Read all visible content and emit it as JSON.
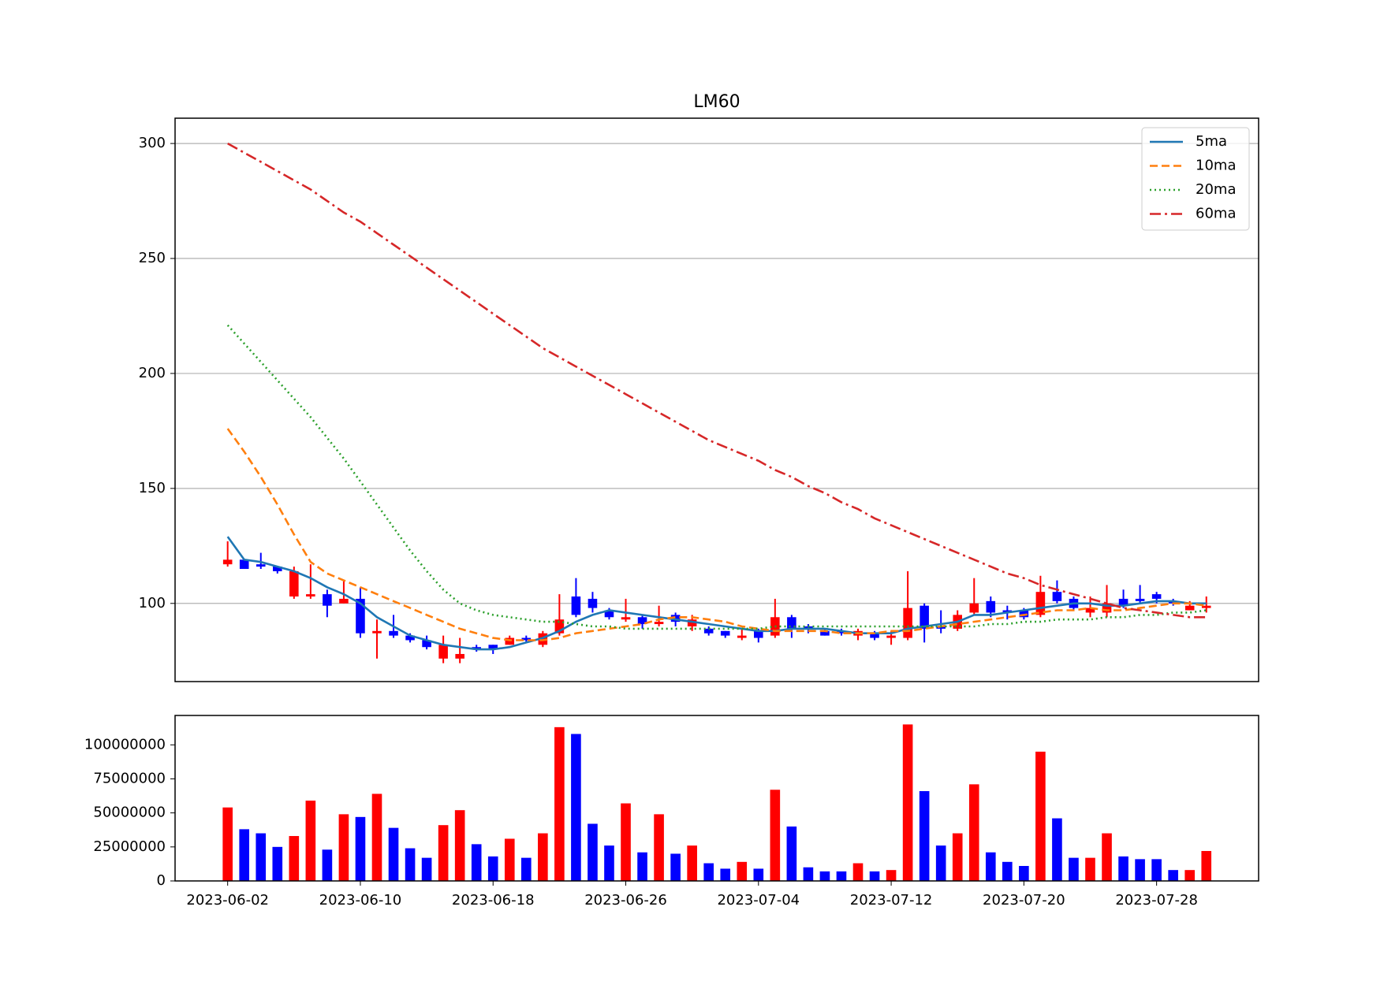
{
  "chart_data": [
    {
      "type": "candlestick",
      "title": "LM60",
      "x": [
        "2023-06-02",
        "2023-06-03",
        "2023-06-04",
        "2023-06-05",
        "2023-06-06",
        "2023-06-07",
        "2023-06-08",
        "2023-06-09",
        "2023-06-10",
        "2023-06-11",
        "2023-06-12",
        "2023-06-13",
        "2023-06-14",
        "2023-06-15",
        "2023-06-16",
        "2023-06-17",
        "2023-06-18",
        "2023-06-19",
        "2023-06-20",
        "2023-06-21",
        "2023-06-22",
        "2023-06-23",
        "2023-06-24",
        "2023-06-25",
        "2023-06-26",
        "2023-06-27",
        "2023-06-28",
        "2023-06-29",
        "2023-06-30",
        "2023-07-01",
        "2023-07-02",
        "2023-07-03",
        "2023-07-04",
        "2023-07-05",
        "2023-07-06",
        "2023-07-07",
        "2023-07-08",
        "2023-07-09",
        "2023-07-10",
        "2023-07-11",
        "2023-07-12",
        "2023-07-13",
        "2023-07-14",
        "2023-07-15",
        "2023-07-16",
        "2023-07-17",
        "2023-07-18",
        "2023-07-19",
        "2023-07-20",
        "2023-07-21",
        "2023-07-22",
        "2023-07-23",
        "2023-07-24",
        "2023-07-25",
        "2023-07-26",
        "2023-07-27",
        "2023-07-28",
        "2023-07-29",
        "2023-07-30",
        "2023-07-31"
      ],
      "open": [
        117,
        119,
        117,
        116,
        103,
        103,
        104,
        100,
        102,
        87,
        88,
        86,
        84,
        76,
        76,
        81,
        82,
        82,
        85,
        82,
        87,
        103,
        102,
        97,
        93,
        94,
        91,
        95,
        90,
        89,
        88,
        85,
        88,
        86,
        94,
        90,
        88,
        88,
        86,
        87,
        85,
        85,
        99,
        90,
        89,
        96,
        101,
        97,
        97,
        95,
        105,
        102,
        96,
        96,
        102,
        102,
        104,
        101,
        97,
        98
      ],
      "close": [
        119,
        115,
        116,
        114,
        114,
        104,
        99,
        102,
        87,
        88,
        86,
        84,
        81,
        82,
        78,
        80,
        80,
        85,
        84,
        87,
        93,
        95,
        98,
        94,
        94,
        91,
        92,
        92,
        93,
        87,
        86,
        86,
        85,
        94,
        89,
        89,
        86,
        87,
        88,
        85,
        86,
        98,
        89,
        89,
        95,
        100,
        96,
        96,
        94,
        105,
        101,
        98,
        98,
        100,
        99,
        101,
        102,
        100,
        99,
        99
      ],
      "high": [
        127,
        119,
        122,
        116,
        116,
        117,
        106,
        110,
        107,
        93,
        95,
        87,
        86,
        86,
        85,
        82,
        82,
        86,
        86,
        88,
        104,
        111,
        105,
        98,
        102,
        95,
        99,
        96,
        95,
        90,
        88,
        89,
        89,
        102,
        95,
        91,
        89,
        89,
        89,
        88,
        88,
        114,
        100,
        97,
        97,
        111,
        103,
        99,
        98,
        112,
        110,
        103,
        103,
        108,
        106,
        108,
        105,
        102,
        101,
        103
      ],
      "low": [
        116,
        115,
        115,
        113,
        102,
        102,
        94,
        100,
        85,
        76,
        85,
        83,
        80,
        74,
        74,
        79,
        78,
        82,
        83,
        81,
        86,
        94,
        96,
        93,
        92,
        89,
        90,
        90,
        88,
        86,
        85,
        84,
        83,
        85,
        85,
        87,
        86,
        86,
        84,
        84,
        82,
        84,
        83,
        87,
        88,
        95,
        94,
        93,
        93,
        94,
        100,
        97,
        94,
        94,
        98,
        100,
        100,
        99,
        97,
        96
      ],
      "up_color": "#ff0000",
      "down_color": "#0000ff",
      "series": [
        {
          "name": "5ma",
          "color": "#1f77b4",
          "dash": "solid",
          "values": [
            129,
            119,
            118,
            116,
            114,
            111,
            107,
            104,
            100,
            94,
            90,
            86,
            84,
            82,
            81,
            80,
            80,
            81,
            83,
            85,
            88,
            92,
            95,
            97,
            96,
            95,
            94,
            93,
            92,
            91,
            90,
            89,
            88,
            88,
            89,
            89,
            89,
            88,
            87,
            87,
            87,
            89,
            90,
            91,
            92,
            95,
            95,
            96,
            97,
            98,
            99,
            100,
            100,
            99,
            99,
            100,
            101,
            101,
            100,
            100
          ]
        },
        {
          "name": "10ma",
          "color": "#ff7f0e",
          "dash": "dashed",
          "values": [
            176,
            166,
            155,
            143,
            130,
            118,
            113,
            110,
            107,
            104,
            101,
            98,
            95,
            92,
            89,
            87,
            85,
            84,
            84,
            84,
            85,
            87,
            88,
            89,
            90,
            91,
            93,
            94,
            94,
            93,
            92,
            90,
            89,
            88,
            88,
            88,
            88,
            87,
            87,
            87,
            88,
            88,
            89,
            90,
            91,
            92,
            93,
            94,
            95,
            96,
            97,
            97,
            98,
            97,
            97,
            98,
            99,
            100,
            100,
            99
          ]
        },
        {
          "name": "20ma",
          "color": "#2ca02c",
          "dash": "dotted",
          "values": [
            221,
            213,
            205,
            197,
            189,
            181,
            172,
            163,
            153,
            143,
            133,
            123,
            114,
            106,
            100,
            97,
            95,
            94,
            93,
            92,
            92,
            91,
            90,
            90,
            89,
            89,
            89,
            89,
            89,
            89,
            89,
            89,
            89,
            90,
            90,
            90,
            90,
            90,
            90,
            90,
            90,
            90,
            90,
            90,
            90,
            90,
            91,
            91,
            92,
            92,
            93,
            93,
            93,
            94,
            94,
            95,
            95,
            96,
            96,
            97
          ]
        },
        {
          "name": "60ma",
          "color": "#d62728",
          "dash": "dashdot",
          "values": [
            300,
            296,
            292,
            288,
            284,
            280,
            275,
            270,
            266,
            261,
            256,
            251,
            246,
            241,
            236,
            231,
            226,
            221,
            216,
            211,
            207,
            203,
            199,
            195,
            191,
            187,
            183,
            179,
            175,
            171,
            168,
            165,
            162,
            158,
            155,
            151,
            148,
            144,
            141,
            137,
            134,
            131,
            128,
            125,
            122,
            119,
            116,
            113,
            111,
            108,
            106,
            104,
            102,
            100,
            98,
            97,
            96,
            95,
            94,
            94
          ]
        }
      ],
      "ylim": [
        66,
        311
      ],
      "yticks": [
        100,
        150,
        200,
        250,
        300
      ],
      "grid": true,
      "legend": "upper right"
    },
    {
      "type": "bar",
      "values": [
        54000000,
        38000000,
        35000000,
        25000000,
        33000000,
        59000000,
        23000000,
        49000000,
        47000000,
        64000000,
        39000000,
        24000000,
        17000000,
        41000000,
        52000000,
        27000000,
        18000000,
        31000000,
        17000000,
        35000000,
        113000000,
        108000000,
        42000000,
        26000000,
        57000000,
        21000000,
        49000000,
        20000000,
        26000000,
        13000000,
        9000000,
        14000000,
        9000000,
        67000000,
        40000000,
        10000000,
        7000000,
        7000000,
        13000000,
        7000000,
        8000000,
        115000000,
        66000000,
        26000000,
        35000000,
        71000000,
        21000000,
        14000000,
        11000000,
        95000000,
        46000000,
        17000000,
        17000000,
        35000000,
        18000000,
        16000000,
        16000000,
        8000000,
        8000000,
        22000000
      ],
      "colors": [
        "#ff0000",
        "#0000ff",
        "#0000ff",
        "#0000ff",
        "#ff0000",
        "#ff0000",
        "#0000ff",
        "#ff0000",
        "#0000ff",
        "#ff0000",
        "#0000ff",
        "#0000ff",
        "#0000ff",
        "#ff0000",
        "#ff0000",
        "#0000ff",
        "#0000ff",
        "#ff0000",
        "#0000ff",
        "#ff0000",
        "#ff0000",
        "#0000ff",
        "#0000ff",
        "#0000ff",
        "#ff0000",
        "#0000ff",
        "#ff0000",
        "#0000ff",
        "#ff0000",
        "#0000ff",
        "#0000ff",
        "#ff0000",
        "#0000ff",
        "#ff0000",
        "#0000ff",
        "#0000ff",
        "#0000ff",
        "#0000ff",
        "#ff0000",
        "#0000ff",
        "#ff0000",
        "#ff0000",
        "#0000ff",
        "#0000ff",
        "#ff0000",
        "#ff0000",
        "#0000ff",
        "#0000ff",
        "#0000ff",
        "#ff0000",
        "#0000ff",
        "#0000ff",
        "#ff0000",
        "#ff0000",
        "#0000ff",
        "#0000ff",
        "#0000ff",
        "#0000ff",
        "#ff0000",
        "#ff0000"
      ],
      "ylim": [
        0,
        121600000
      ],
      "yticks": [
        0,
        25000000,
        50000000,
        75000000,
        100000000
      ],
      "xticks": [
        "2023-06-02",
        "2023-06-10",
        "2023-06-18",
        "2023-06-26",
        "2023-07-04",
        "2023-07-12",
        "2023-07-20",
        "2023-07-28"
      ]
    }
  ]
}
